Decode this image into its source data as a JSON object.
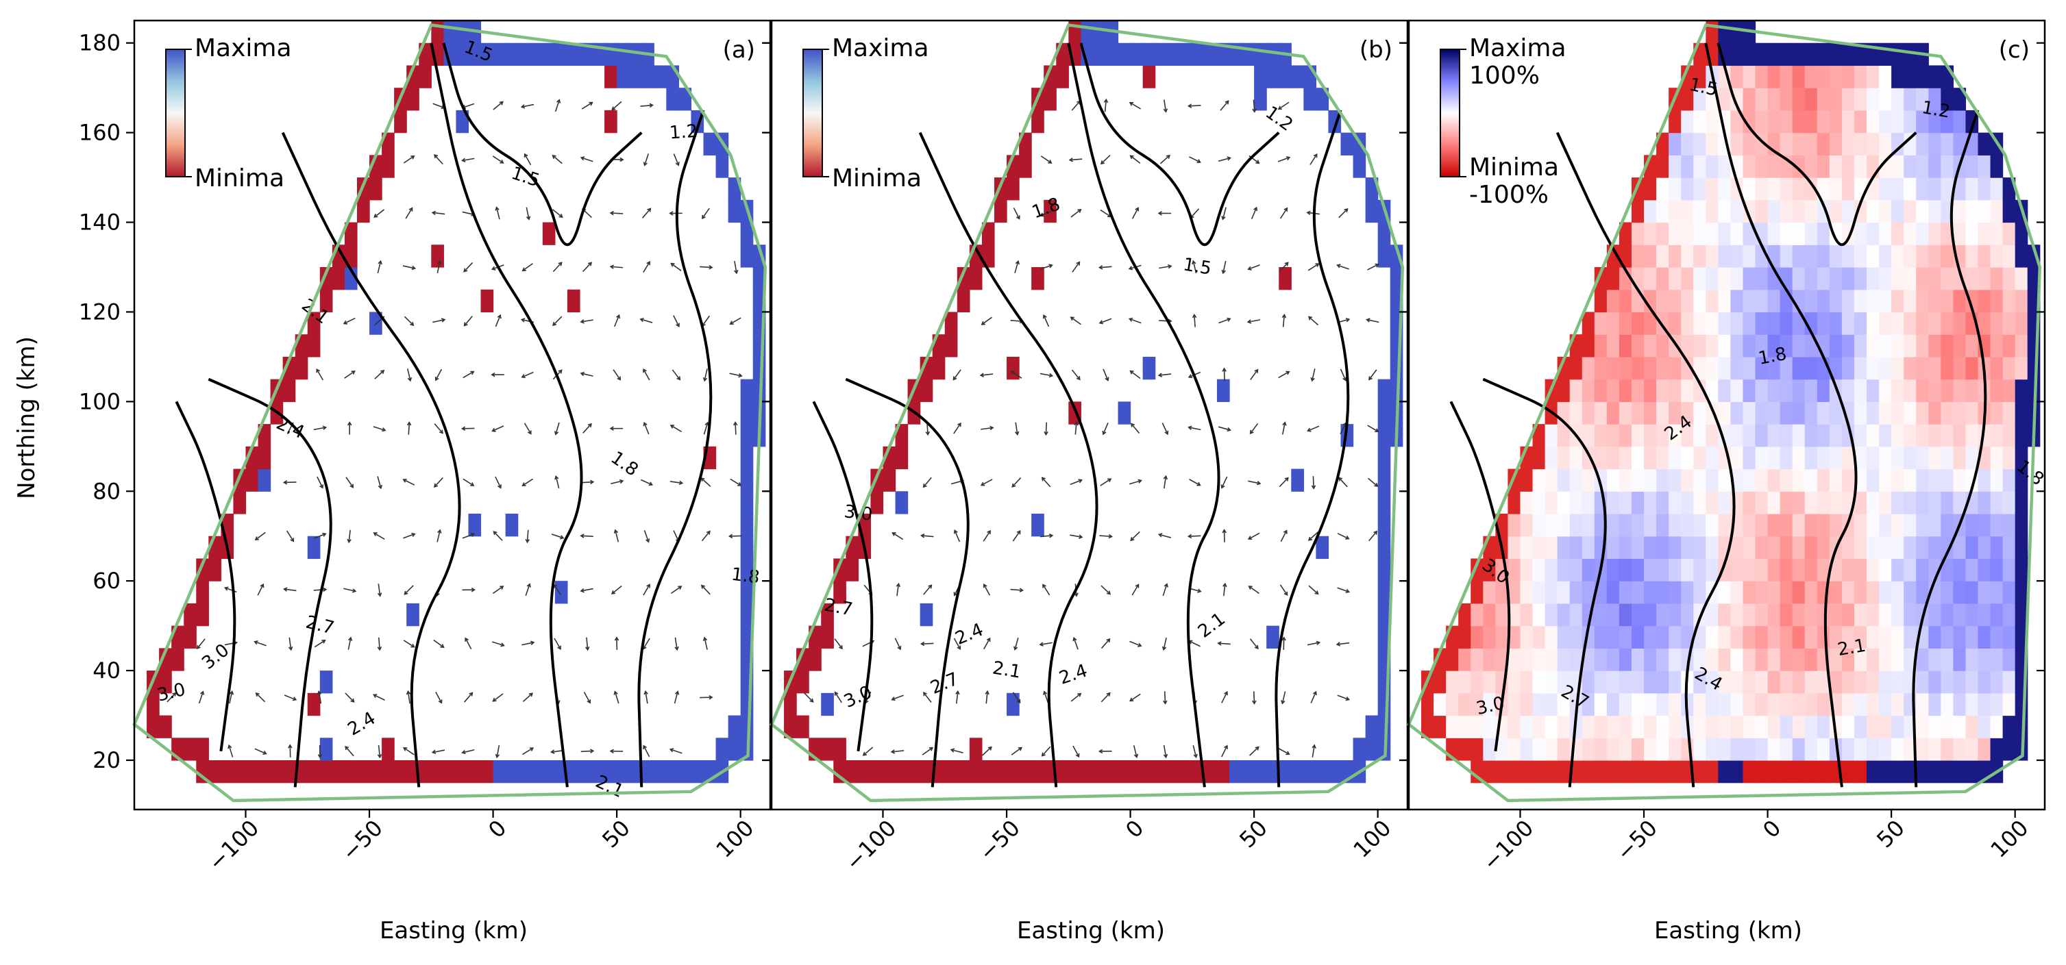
{
  "figure": {
    "ylabel": "Northing (km)",
    "xlabel": "Easting (km)"
  },
  "chart_data": [
    {
      "type": "heatmap",
      "panel_label": "(a)",
      "xlim": [
        -145,
        112
      ],
      "ylim": [
        9,
        185
      ],
      "xticks": [
        -100,
        -50,
        0,
        50,
        100
      ],
      "yticks": [
        20,
        40,
        60,
        80,
        100,
        120,
        140,
        160,
        180
      ],
      "legend": {
        "placement": "top-left",
        "top_label": "Maxima",
        "bottom_label": "Minima",
        "colors": [
          "#b2182b",
          "#f4a582",
          "#f7f7f7",
          "#92c5de",
          "#4053c8"
        ]
      },
      "boundary": [
        [
          -145,
          28
        ],
        [
          -105,
          11
        ],
        [
          80,
          13
        ],
        [
          103,
          21
        ],
        [
          110,
          130
        ],
        [
          96,
          155
        ],
        [
          70,
          177
        ],
        [
          -25,
          184
        ]
      ],
      "contour_labels": [
        {
          "text": "1.5",
          "x": -6,
          "y": 178
        },
        {
          "text": "1.2",
          "x": 77,
          "y": 160
        },
        {
          "text": "1.5",
          "x": 13,
          "y": 150
        },
        {
          "text": "2.1",
          "x": -72,
          "y": 120
        },
        {
          "text": "2.4",
          "x": -82,
          "y": 94
        },
        {
          "text": "1.8",
          "x": 53,
          "y": 86
        },
        {
          "text": "1.8",
          "x": 102,
          "y": 61
        },
        {
          "text": "2.7",
          "x": -70,
          "y": 50
        },
        {
          "text": "3.0",
          "x": -112,
          "y": 43
        },
        {
          "text": "3.0",
          "x": -130,
          "y": 35
        },
        {
          "text": "2.4",
          "x": -53,
          "y": 28
        },
        {
          "text": "2.1",
          "x": 47,
          "y": 14
        }
      ]
    },
    {
      "type": "heatmap",
      "panel_label": "(b)",
      "xlim": [
        -145,
        112
      ],
      "ylim": [
        9,
        185
      ],
      "xticks": [
        -100,
        -50,
        0,
        50,
        100
      ],
      "yticks": [
        20,
        40,
        60,
        80,
        100,
        120,
        140,
        160,
        180
      ],
      "legend": {
        "placement": "top-left",
        "top_label": "Maxima",
        "bottom_label": "Minima",
        "colors": [
          "#b2182b",
          "#f4a582",
          "#f7f7f7",
          "#92c5de",
          "#4053c8"
        ]
      },
      "boundary": [
        [
          -145,
          28
        ],
        [
          -105,
          11
        ],
        [
          80,
          13
        ],
        [
          103,
          21
        ],
        [
          110,
          130
        ],
        [
          96,
          155
        ],
        [
          70,
          177
        ],
        [
          -25,
          184
        ]
      ],
      "contour_labels": [
        {
          "text": "1.2",
          "x": 60,
          "y": 163
        },
        {
          "text": "1.8",
          "x": -34,
          "y": 143
        },
        {
          "text": "1.5",
          "x": 27,
          "y": 130
        },
        {
          "text": "3.0",
          "x": -110,
          "y": 75
        },
        {
          "text": "2.7",
          "x": -118,
          "y": 54
        },
        {
          "text": "2.4",
          "x": -65,
          "y": 48
        },
        {
          "text": "2.1",
          "x": 33,
          "y": 50
        },
        {
          "text": "2.1",
          "x": -50,
          "y": 40
        },
        {
          "text": "2.4",
          "x": -23,
          "y": 39
        },
        {
          "text": "2.7",
          "x": -75,
          "y": 37
        },
        {
          "text": "3.0",
          "x": -110,
          "y": 34
        }
      ]
    },
    {
      "type": "heatmap",
      "panel_label": "(c)",
      "xlim": [
        -145,
        112
      ],
      "ylim": [
        9,
        185
      ],
      "xticks": [
        -100,
        -50,
        0,
        50,
        100
      ],
      "yticks": [
        20,
        40,
        60,
        80,
        100,
        120,
        140,
        160,
        180
      ],
      "legend": {
        "placement": "top-left",
        "top_label": "Maxima",
        "top_sub": "100%",
        "bottom_label": "Minima",
        "bottom_sub": "-100%",
        "colors": [
          "#cc0000",
          "#ff8080",
          "#ffffff",
          "#8080ff",
          "#000066"
        ]
      },
      "boundary": [
        [
          -145,
          28
        ],
        [
          -105,
          11
        ],
        [
          80,
          13
        ],
        [
          103,
          21
        ],
        [
          110,
          130
        ],
        [
          96,
          155
        ],
        [
          70,
          177
        ],
        [
          -25,
          184
        ]
      ],
      "contour_labels": [
        {
          "text": "1.5",
          "x": -26,
          "y": 170
        },
        {
          "text": "1.2",
          "x": 68,
          "y": 165
        },
        {
          "text": "1.8",
          "x": 2,
          "y": 110
        },
        {
          "text": "2.4",
          "x": -36,
          "y": 94
        },
        {
          "text": "1.8",
          "x": 106,
          "y": 84
        },
        {
          "text": "3.0",
          "x": -110,
          "y": 62
        },
        {
          "text": "2.1",
          "x": 34,
          "y": 45
        },
        {
          "text": "2.4",
          "x": -24,
          "y": 38
        },
        {
          "text": "2.7",
          "x": -78,
          "y": 34
        },
        {
          "text": "3.0",
          "x": -112,
          "y": 32
        }
      ]
    }
  ]
}
